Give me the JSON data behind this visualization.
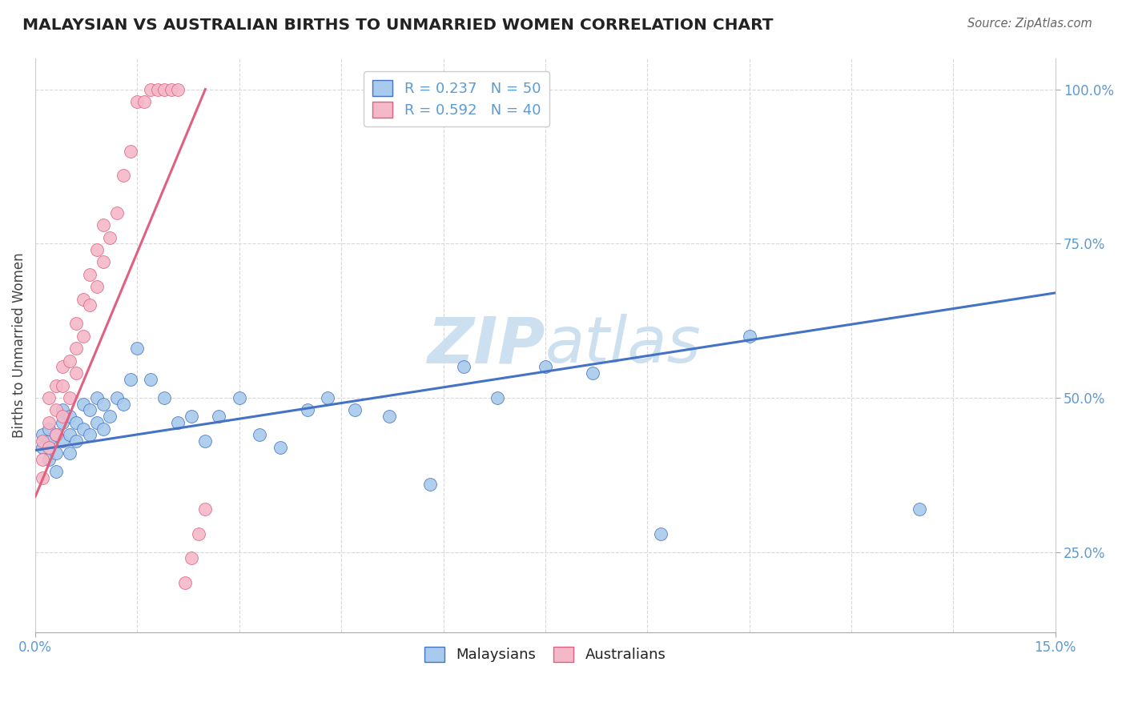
{
  "title": "MALAYSIAN VS AUSTRALIAN BIRTHS TO UNMARRIED WOMEN CORRELATION CHART",
  "source_text": "Source: ZipAtlas.com",
  "ylabel": "Births to Unmarried Women",
  "xlim": [
    0.0,
    0.15
  ],
  "ylim": [
    0.12,
    1.05
  ],
  "ytick_labels": [
    "25.0%",
    "50.0%",
    "75.0%",
    "100.0%"
  ],
  "ytick_values": [
    0.25,
    0.5,
    0.75,
    1.0
  ],
  "R_blue": 0.237,
  "N_blue": 50,
  "R_pink": 0.592,
  "N_pink": 40,
  "legend_label_blue": "Malaysians",
  "legend_label_pink": "Australians",
  "dot_color_blue": "#a8caec",
  "dot_color_pink": "#f4b8c8",
  "line_color_blue": "#4472c4",
  "line_color_pink": "#e06080",
  "background_color": "#ffffff",
  "grid_color": "#d8d8d8",
  "title_color": "#222222",
  "axis_label_color": "#5b9bd5",
  "watermark_color": "#cce0f0",
  "blue_scatter_x": [
    0.001,
    0.001,
    0.002,
    0.002,
    0.002,
    0.003,
    0.003,
    0.003,
    0.004,
    0.004,
    0.004,
    0.005,
    0.005,
    0.005,
    0.006,
    0.006,
    0.007,
    0.007,
    0.008,
    0.008,
    0.009,
    0.009,
    0.01,
    0.01,
    0.011,
    0.012,
    0.013,
    0.014,
    0.015,
    0.017,
    0.019,
    0.021,
    0.023,
    0.025,
    0.027,
    0.03,
    0.033,
    0.036,
    0.04,
    0.043,
    0.047,
    0.052,
    0.058,
    0.063,
    0.068,
    0.075,
    0.082,
    0.092,
    0.105,
    0.13
  ],
  "blue_scatter_y": [
    0.42,
    0.44,
    0.4,
    0.43,
    0.45,
    0.38,
    0.41,
    0.44,
    0.43,
    0.46,
    0.48,
    0.41,
    0.44,
    0.47,
    0.43,
    0.46,
    0.45,
    0.49,
    0.44,
    0.48,
    0.46,
    0.5,
    0.45,
    0.49,
    0.47,
    0.5,
    0.49,
    0.53,
    0.58,
    0.53,
    0.5,
    0.46,
    0.47,
    0.43,
    0.47,
    0.5,
    0.44,
    0.42,
    0.48,
    0.5,
    0.48,
    0.47,
    0.36,
    0.55,
    0.5,
    0.55,
    0.54,
    0.28,
    0.6,
    0.32
  ],
  "pink_scatter_x": [
    0.001,
    0.001,
    0.001,
    0.002,
    0.002,
    0.002,
    0.003,
    0.003,
    0.003,
    0.004,
    0.004,
    0.004,
    0.005,
    0.005,
    0.006,
    0.006,
    0.006,
    0.007,
    0.007,
    0.008,
    0.008,
    0.009,
    0.009,
    0.01,
    0.01,
    0.011,
    0.012,
    0.013,
    0.014,
    0.015,
    0.016,
    0.017,
    0.018,
    0.019,
    0.02,
    0.021,
    0.022,
    0.023,
    0.024,
    0.025
  ],
  "pink_scatter_y": [
    0.4,
    0.37,
    0.43,
    0.42,
    0.46,
    0.5,
    0.44,
    0.48,
    0.52,
    0.47,
    0.52,
    0.55,
    0.5,
    0.56,
    0.54,
    0.58,
    0.62,
    0.6,
    0.66,
    0.65,
    0.7,
    0.68,
    0.74,
    0.72,
    0.78,
    0.76,
    0.8,
    0.86,
    0.9,
    0.98,
    0.98,
    1.0,
    1.0,
    1.0,
    1.0,
    1.0,
    0.2,
    0.24,
    0.28,
    0.32
  ],
  "blue_trendline_x": [
    0.0,
    0.15
  ],
  "blue_trendline_y": [
    0.415,
    0.67
  ],
  "pink_trendline_x": [
    0.0,
    0.025
  ],
  "pink_trendline_y": [
    0.34,
    1.0
  ]
}
